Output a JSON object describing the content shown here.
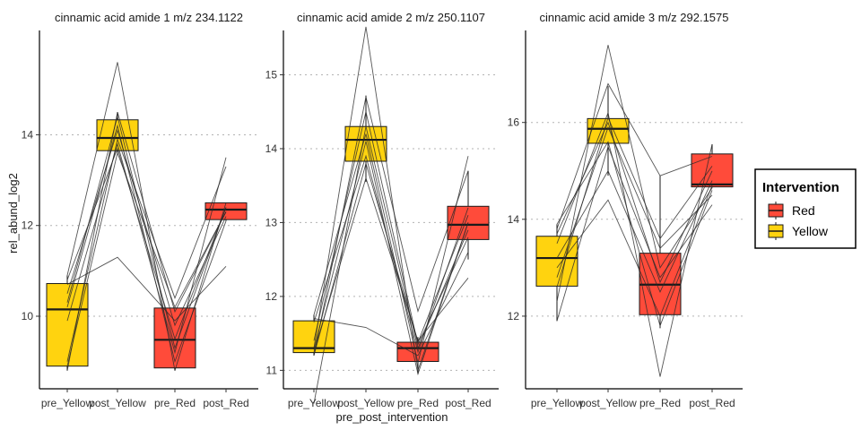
{
  "chart_data": {
    "type": "box",
    "xlabel": "pre_post_intervention",
    "ylabel": "rel_abund_log2",
    "grid": "horizontal dotted at major y ticks",
    "legend": {
      "title": "Intervention",
      "position": "right",
      "items": [
        {
          "label": "Red",
          "color": "#FF4B3A"
        },
        {
          "label": "Yellow",
          "color": "#FFD30F"
        }
      ]
    },
    "panels": [
      {
        "title": "cinnamic acid amide 1  m/z 234.1122",
        "ylim": [
          8.4,
          16.3
        ],
        "yticks": [
          10,
          12,
          14
        ],
        "categories": [
          "pre_Yellow",
          "post_Yellow",
          "pre_Red",
          "post_Red"
        ],
        "groups": [
          "Yellow",
          "Yellow",
          "Red",
          "Red"
        ],
        "boxes": [
          {
            "min": 8.8,
            "q1": 8.9,
            "median": 10.15,
            "q3": 10.72,
            "max": 10.9
          },
          {
            "min": 13.6,
            "q1": 13.65,
            "median": 13.93,
            "q3": 14.33,
            "max": 14.5
          },
          {
            "min": 8.8,
            "q1": 8.86,
            "median": 9.48,
            "q3": 10.18,
            "max": 10.2
          },
          {
            "min": 12.1,
            "q1": 12.13,
            "median": 12.35,
            "q3": 12.5,
            "max": 12.5
          }
        ],
        "subjects": [
          [
            8.8,
            14.5,
            10.1,
            12.3
          ],
          [
            9.9,
            13.8,
            9.2,
            13.5
          ],
          [
            10.2,
            14.2,
            9.0,
            12.1
          ],
          [
            10.7,
            11.3,
            9.9,
            11.1
          ],
          [
            10.8,
            13.7,
            9.5,
            12.4
          ],
          [
            10.9,
            15.6,
            8.8,
            12.5
          ],
          [
            10.5,
            14.1,
            9.8,
            12.2
          ],
          [
            9.0,
            13.9,
            10.4,
            13.3
          ],
          [
            10.3,
            14.4,
            9.3,
            12.4
          ],
          [
            8.9,
            13.6,
            10.2,
            12.3
          ]
        ]
      },
      {
        "title": "cinnamic acid amide 2 m/z 250.1107",
        "ylim": [
          10.75,
          15.6
        ],
        "yticks": [
          11,
          12,
          13,
          14,
          15
        ],
        "categories": [
          "pre_Yellow",
          "post_Yellow",
          "pre_Red",
          "post_Red"
        ],
        "groups": [
          "Yellow",
          "Yellow",
          "Red",
          "Red"
        ],
        "boxes": [
          {
            "min": 11.2,
            "q1": 11.24,
            "median": 11.3,
            "q3": 11.67,
            "max": 11.75
          },
          {
            "min": 13.55,
            "q1": 13.83,
            "median": 14.12,
            "q3": 14.3,
            "max": 14.72
          },
          {
            "min": 10.95,
            "q1": 11.12,
            "median": 11.3,
            "q3": 11.38,
            "max": 11.45
          },
          {
            "min": 12.5,
            "q1": 12.77,
            "median": 12.97,
            "q3": 13.22,
            "max": 13.7
          }
        ],
        "subjects": [
          [
            10.55,
            14.3,
            11.3,
            12.9
          ],
          [
            11.7,
            11.58,
            11.2,
            12.6
          ],
          [
            11.25,
            13.6,
            11.4,
            12.25
          ],
          [
            11.3,
            15.65,
            11.0,
            13.0
          ],
          [
            11.2,
            14.7,
            11.8,
            13.7
          ],
          [
            11.65,
            13.9,
            11.25,
            13.2
          ],
          [
            11.28,
            14.1,
            10.95,
            13.0
          ],
          [
            11.75,
            14.2,
            11.1,
            13.9
          ],
          [
            11.4,
            14.5,
            11.35,
            12.8
          ],
          [
            11.2,
            13.8,
            11.38,
            13.1
          ]
        ]
      },
      {
        "title": "cinnamic acid amide 3 m/z 292.1575",
        "ylim": [
          10.5,
          17.9
        ],
        "yticks": [
          12,
          14,
          16
        ],
        "categories": [
          "pre_Yellow",
          "post_Yellow",
          "pre_Red",
          "post_Red"
        ],
        "groups": [
          "Yellow",
          "Yellow",
          "Red",
          "Red"
        ],
        "boxes": [
          {
            "min": 11.9,
            "q1": 12.62,
            "median": 13.2,
            "q3": 13.65,
            "max": 13.9
          },
          {
            "min": 14.9,
            "q1": 15.57,
            "median": 15.87,
            "q3": 16.08,
            "max": 16.75
          },
          {
            "min": 11.75,
            "q1": 12.03,
            "median": 12.65,
            "q3": 13.3,
            "max": 14.9
          },
          {
            "min": 14.65,
            "q1": 14.67,
            "median": 14.72,
            "q3": 15.35,
            "max": 15.55
          }
        ],
        "subjects": [
          [
            11.9,
            15.5,
            12.8,
            14.3
          ],
          [
            12.3,
            17.6,
            13.0,
            14.65
          ],
          [
            13.0,
            14.4,
            12.0,
            14.7
          ],
          [
            13.5,
            16.2,
            10.75,
            15.55
          ],
          [
            13.8,
            16.8,
            14.9,
            15.3
          ],
          [
            13.2,
            15.0,
            12.5,
            14.8
          ],
          [
            12.8,
            15.9,
            13.4,
            14.5
          ],
          [
            13.7,
            16.0,
            12.7,
            15.0
          ],
          [
            13.9,
            15.6,
            11.8,
            14.6
          ],
          [
            12.6,
            16.1,
            13.6,
            15.1
          ]
        ]
      }
    ]
  }
}
